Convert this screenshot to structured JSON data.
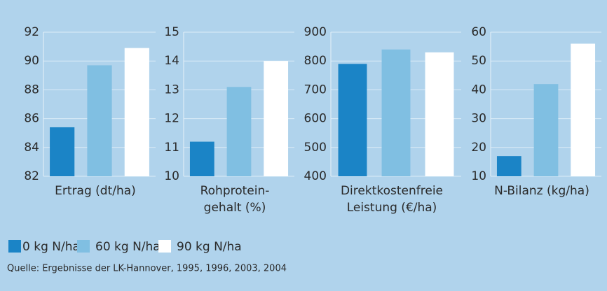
{
  "chart_data": [
    {
      "type": "bar",
      "xlabel": [
        "Ertrag (dt/ha)"
      ],
      "values": [
        85.4,
        89.7,
        90.9
      ],
      "ylim": [
        82,
        92
      ],
      "yticks": [
        82,
        84,
        86,
        88,
        90,
        92
      ],
      "grid": true
    },
    {
      "type": "bar",
      "xlabel": [
        "Rohprotein-",
        "gehalt (%)"
      ],
      "values": [
        11.2,
        13.1,
        14.0
      ],
      "ylim": [
        10,
        15
      ],
      "yticks": [
        10,
        11,
        12,
        13,
        14,
        15
      ],
      "grid": true
    },
    {
      "type": "bar",
      "xlabel": [
        "Direktkostenfreie",
        "Leistung (€/ha)"
      ],
      "values": [
        790,
        840,
        830
      ],
      "ylim": [
        400,
        900
      ],
      "yticks": [
        400,
        500,
        600,
        700,
        800,
        900
      ],
      "grid": true
    },
    {
      "type": "bar",
      "xlabel": [
        "N-Bilanz (kg/ha)"
      ],
      "values": [
        17,
        42,
        56
      ],
      "ylim": [
        10,
        60
      ],
      "yticks": [
        10,
        20,
        30,
        40,
        50,
        60
      ],
      "grid": true
    }
  ],
  "legend": [
    {
      "name": "0 kg N/ha",
      "color": "#1b84c6"
    },
    {
      "name": "60 kg N/ha",
      "color": "#80bfe2"
    },
    {
      "name": "90 kg N/ha",
      "color": "#ffffff"
    }
  ],
  "source": "Quelle: Ergebnisse der LK-Hannover, 1995, 1996, 2003, 2004"
}
